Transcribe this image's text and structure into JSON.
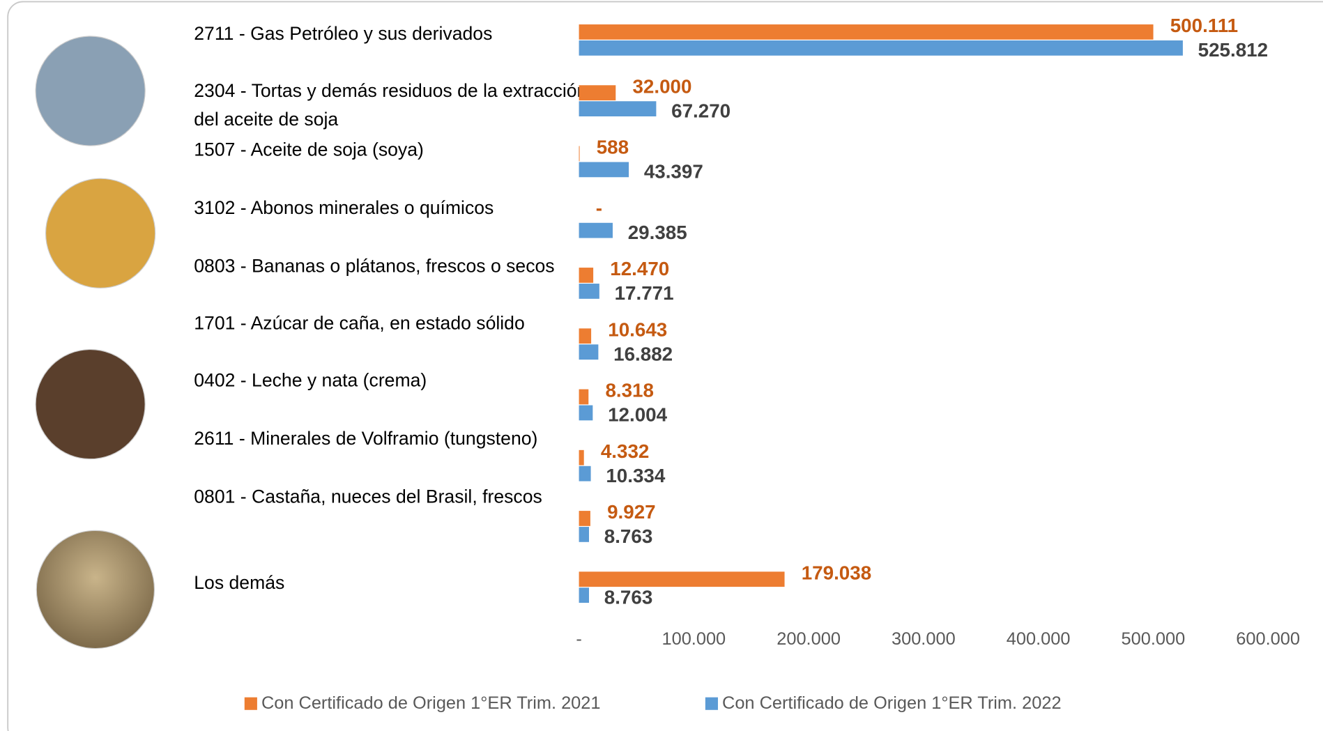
{
  "chart_data": {
    "type": "bar",
    "orientation": "horizontal",
    "categories": [
      "2711 - Gas Petróleo y sus derivados",
      "2304 - Tortas y demás residuos de la extracción del aceite de soja",
      "1507 - Aceite de soja (soya)",
      "3102 - Abonos minerales o químicos",
      "0803 - Bananas o plátanos, frescos o secos",
      "1701 - Azúcar de caña, en estado sólido",
      "0402 - Leche y nata (crema)",
      "2611 - Minerales de Volframio (tungsteno)",
      "0801 - Castaña, nueces del Brasil, frescos",
      "Los demás"
    ],
    "series": [
      {
        "name": "Con Certificado de Origen 1°ER Trim. 2021",
        "color": "#ed7d31",
        "label_color": "#c55a11",
        "values": [
          500111,
          32000,
          588,
          0,
          12470,
          10643,
          8318,
          4332,
          9927,
          179038
        ],
        "value_labels": [
          "500.111",
          "32.000",
          "588",
          "-",
          "12.470",
          "10.643",
          "8.318",
          "4.332",
          "9.927",
          "179.038"
        ]
      },
      {
        "name": "Con Certificado de Origen 1°ER Trim. 2022",
        "color": "#5b9bd5",
        "label_color": "#404040",
        "values": [
          525812,
          67270,
          43397,
          29385,
          17771,
          16882,
          12004,
          10334,
          8763,
          8763
        ],
        "value_labels": [
          "525.812",
          "67.270",
          "43.397",
          "29.385",
          "17.771",
          "16.882",
          "12.004",
          "10.334",
          "8.763",
          "8.763"
        ]
      }
    ],
    "xlim": [
      0,
      600000
    ],
    "xticks": [
      {
        "value": 0,
        "label": "-"
      },
      {
        "value": 100000,
        "label": "100.000"
      },
      {
        "value": 200000,
        "label": "200.000"
      },
      {
        "value": 300000,
        "label": "300.000"
      },
      {
        "value": 400000,
        "label": "400.000"
      },
      {
        "value": 500000,
        "label": "500.000"
      },
      {
        "value": 600000,
        "label": "600.000"
      }
    ],
    "legend": "bottom"
  }
}
